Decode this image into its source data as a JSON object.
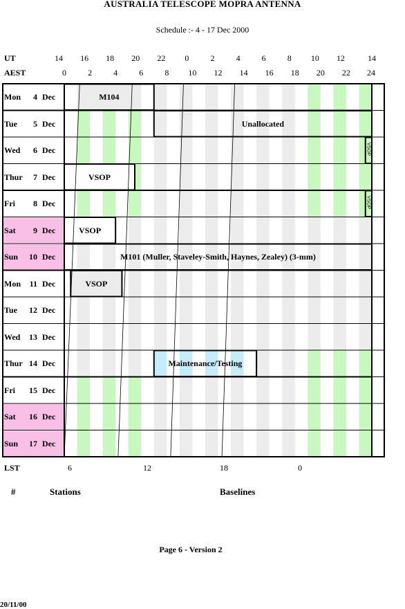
{
  "title": "AUSTRALIA TELESCOPE MOPRA ANTENNA",
  "subtitle": "Schedule :- 4 - 17 Dec 2000",
  "ut_label": "UT",
  "aest_label": "AEST",
  "lst_label": "LST",
  "ut_ticks": [
    "14",
    "16",
    "18",
    "20",
    "22",
    "0",
    "2",
    "4",
    "6",
    "8",
    "10",
    "12",
    "14"
  ],
  "aest_ticks": [
    "0",
    "2",
    "4",
    "6",
    "8",
    "10",
    "12",
    "14",
    "16",
    "18",
    "20",
    "22",
    "24"
  ],
  "lst_ticks": [
    "6",
    "12",
    "18",
    "0"
  ],
  "days": [
    {
      "dow": "Mon",
      "num": "4",
      "mon": "Dec",
      "weekend": false
    },
    {
      "dow": "Tue",
      "num": "5",
      "mon": "Dec",
      "weekend": false
    },
    {
      "dow": "Wed",
      "num": "6",
      "mon": "Dec",
      "weekend": false
    },
    {
      "dow": "Thur",
      "num": "7",
      "mon": "Dec",
      "weekend": false
    },
    {
      "dow": "Fri",
      "num": "8",
      "mon": "Dec",
      "weekend": false
    },
    {
      "dow": "Sat",
      "num": "9",
      "mon": "Dec",
      "weekend": true
    },
    {
      "dow": "Sun",
      "num": "10",
      "mon": "Dec",
      "weekend": true
    },
    {
      "dow": "Mon",
      "num": "11",
      "mon": "Dec",
      "weekend": false
    },
    {
      "dow": "Tue",
      "num": "12",
      "mon": "Dec",
      "weekend": false
    },
    {
      "dow": "Wed",
      "num": "13",
      "mon": "Dec",
      "weekend": false
    },
    {
      "dow": "Thur",
      "num": "14",
      "mon": "Dec",
      "weekend": false
    },
    {
      "dow": "Fri",
      "num": "15",
      "mon": "Dec",
      "weekend": false
    },
    {
      "dow": "Sat",
      "num": "16",
      "mon": "Dec",
      "weekend": true
    },
    {
      "dow": "Sun",
      "num": "17",
      "mon": "Dec",
      "weekend": true
    }
  ],
  "blocks": [
    {
      "label": "M104",
      "day": 0,
      "start": 0,
      "end": 7
    },
    {
      "label": "Unallocated",
      "day": 1,
      "start": 7,
      "end": 24
    },
    {
      "label": "VSOP",
      "day": 2,
      "start": 23.5,
      "end": 24,
      "vertical": true
    },
    {
      "label": "VSOP",
      "day": 3,
      "start": 0,
      "end": 5.5
    },
    {
      "label": "VSOP",
      "day": 4,
      "start": 23.5,
      "end": 24,
      "vertical": true
    },
    {
      "label": "VSOP",
      "day": 5,
      "start": 0,
      "end": 4
    },
    {
      "label": "M101 (Muller, Staveley-Smith, Haynes, Zealey) (3-mm)",
      "day": 6,
      "start": 0,
      "end": 24
    },
    {
      "label": "VSOP",
      "day": 7,
      "start": 0.5,
      "end": 4.5
    },
    {
      "label": "Maintenance/Testing",
      "day": 10,
      "start": 7,
      "end": 15
    }
  ],
  "footer": {
    "hash": "#",
    "stations": "Stations",
    "baselines": "Baselines",
    "page": "Page 6 - Version 2",
    "date": "20/11/00"
  },
  "colors": {
    "weekend": "#f9bfe6",
    "night_stripe": "#c8f8c0",
    "day_stripe": "#ececec",
    "maintenance": "#c4ecfa"
  }
}
